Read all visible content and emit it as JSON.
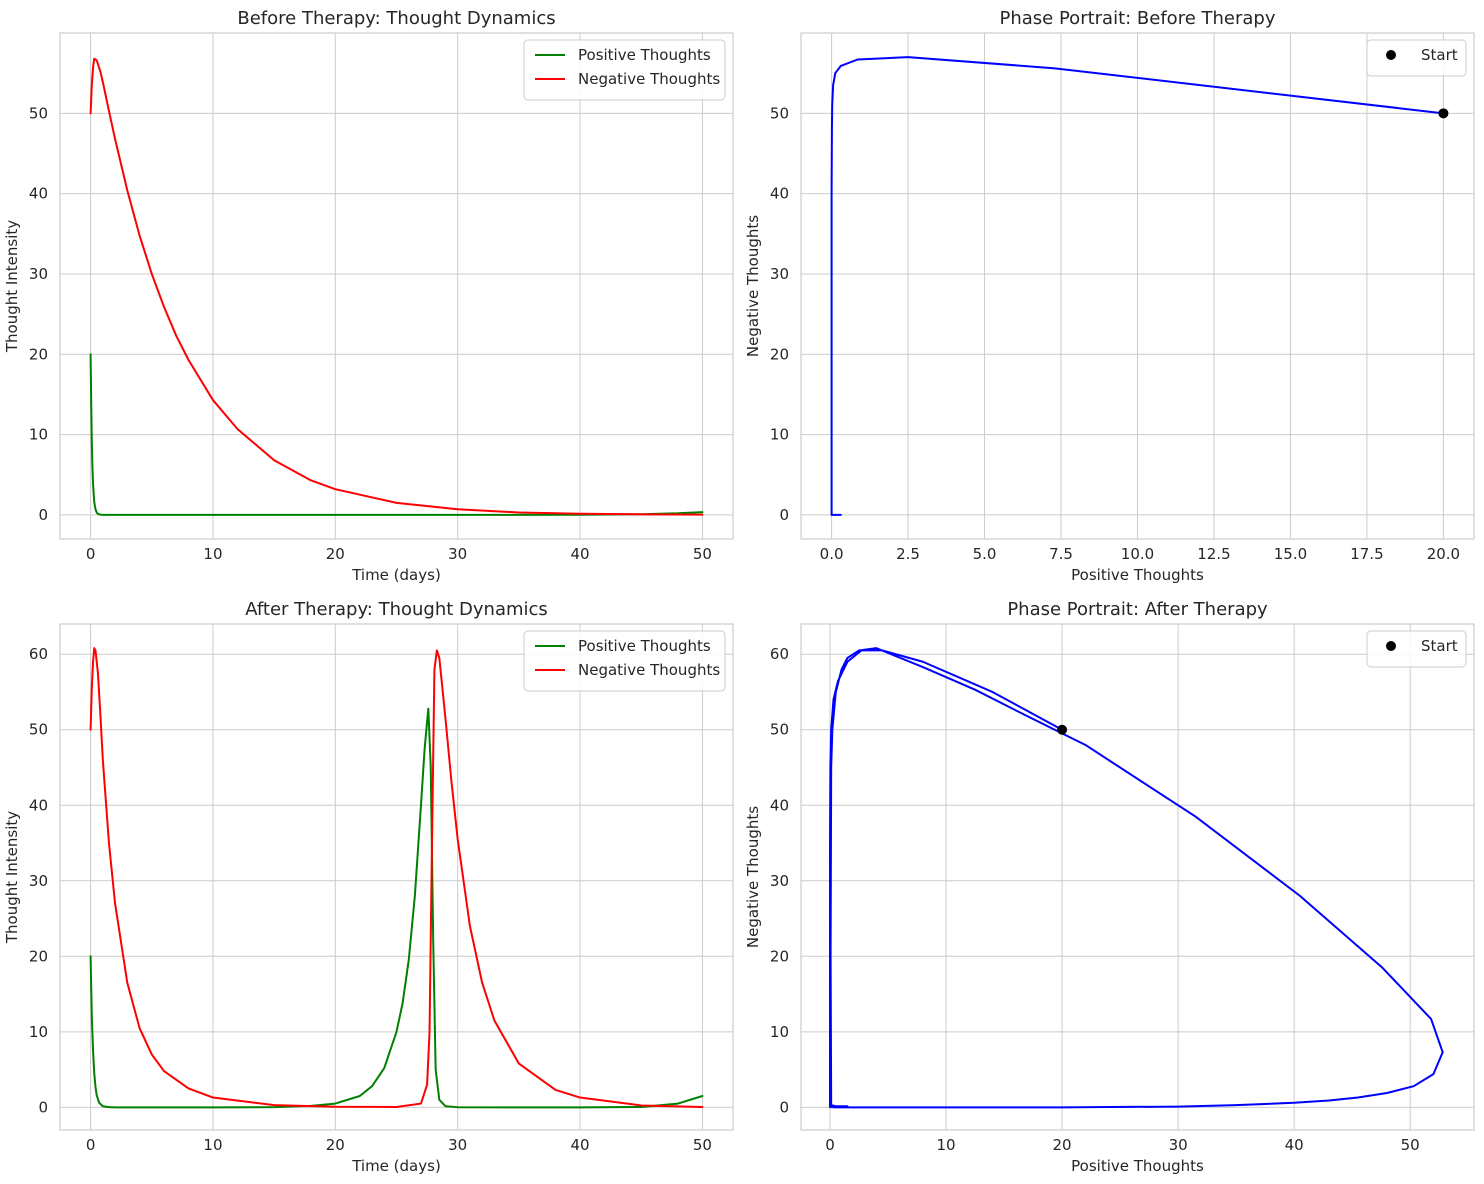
{
  "chart_data": [
    {
      "type": "line",
      "title": "Before Therapy: Thought Dynamics",
      "xlabel": "Time (days)",
      "ylabel": "Thought Intensity",
      "xlim": [
        -2.5,
        52.5
      ],
      "ylim": [
        -3,
        60
      ],
      "xticks": [
        0,
        10,
        20,
        30,
        40,
        50
      ],
      "yticks": [
        0,
        10,
        20,
        30,
        40,
        50
      ],
      "grid": true,
      "legend": "top-right",
      "series": [
        {
          "name": "Positive Thoughts",
          "color": "#008000",
          "x": [
            0,
            0.05,
            0.1,
            0.15,
            0.2,
            0.3,
            0.4,
            0.5,
            0.6,
            0.8,
            1,
            2,
            5,
            10,
            20,
            30,
            40,
            45,
            48,
            50
          ],
          "y": [
            20,
            14,
            9,
            6,
            3.8,
            1.6,
            0.7,
            0.3,
            0.12,
            0.03,
            0.01,
            0,
            0,
            0,
            0,
            0,
            0.02,
            0.08,
            0.2,
            0.35
          ]
        },
        {
          "name": "Negative Thoughts",
          "color": "#ff0000",
          "x": [
            0,
            0.1,
            0.2,
            0.3,
            0.5,
            0.8,
            1,
            1.5,
            2,
            3,
            4,
            5,
            6,
            7,
            8,
            10,
            12,
            15,
            18,
            20,
            25,
            30,
            35,
            40,
            45,
            50
          ],
          "y": [
            50,
            53.5,
            55.7,
            56.8,
            56.6,
            55.2,
            53.9,
            50.3,
            46.8,
            40.4,
            34.8,
            30,
            25.9,
            22.3,
            19.3,
            14.3,
            10.7,
            6.8,
            4.3,
            3.2,
            1.5,
            0.7,
            0.3,
            0.15,
            0.07,
            0.03
          ]
        }
      ]
    },
    {
      "type": "line",
      "title": "Phase Portrait: Before Therapy",
      "xlabel": "Positive Thoughts",
      "ylabel": "Negative Thoughts",
      "xlim": [
        -1,
        21
      ],
      "ylim": [
        -3,
        60
      ],
      "xticks": [
        0.0,
        2.5,
        5.0,
        7.5,
        10.0,
        12.5,
        15.0,
        17.5,
        20.0
      ],
      "xtick_labels": [
        "0.0",
        "2.5",
        "5.0",
        "7.5",
        "10.0",
        "12.5",
        "15.0",
        "17.5",
        "20.0"
      ],
      "yticks": [
        0,
        10,
        20,
        30,
        40,
        50
      ],
      "grid": true,
      "legend": "top-right",
      "series": [
        {
          "color": "#0000ff",
          "x": [
            20,
            7.3,
            2.5,
            0.85,
            0.3,
            0.12,
            0.05,
            0.02,
            0.01,
            0,
            0,
            0,
            0,
            0.05,
            0.15,
            0.3
          ],
          "y": [
            50,
            55.6,
            57,
            56.7,
            55.9,
            55,
            53.5,
            51,
            48,
            40,
            20,
            5,
            0,
            0,
            0,
            0
          ]
        },
        {
          "name": "Start",
          "type": "marker",
          "color": "#000000",
          "x": [
            20
          ],
          "y": [
            50
          ]
        }
      ]
    },
    {
      "type": "line",
      "title": "After Therapy: Thought Dynamics",
      "xlabel": "Time (days)",
      "ylabel": "Thought Intensity",
      "xlim": [
        -2.5,
        52.5
      ],
      "ylim": [
        -3,
        64
      ],
      "xticks": [
        0,
        10,
        20,
        30,
        40,
        50
      ],
      "yticks": [
        0,
        10,
        20,
        30,
        40,
        50,
        60
      ],
      "grid": true,
      "legend": "top-right",
      "series": [
        {
          "name": "Positive Thoughts",
          "color": "#008000",
          "x": [
            0,
            0.1,
            0.2,
            0.3,
            0.4,
            0.5,
            0.7,
            1,
            1.5,
            2,
            5,
            10,
            15,
            18,
            20,
            22,
            23,
            24,
            25,
            25.5,
            26,
            26.5,
            27,
            27.3,
            27.6,
            27.8,
            28,
            28.2,
            28.5,
            29,
            30,
            35,
            40,
            45,
            48,
            50
          ],
          "y": [
            20,
            12,
            7.5,
            4.5,
            2.7,
            1.6,
            0.6,
            0.15,
            0.03,
            0,
            0,
            0,
            0.03,
            0.2,
            0.5,
            1.5,
            2.8,
            5.2,
            10,
            13.8,
            19.5,
            28,
            40,
            47.5,
            52.8,
            45,
            22,
            5,
            1,
            0.15,
            0.02,
            0,
            0,
            0.05,
            0.5,
            1.5
          ]
        },
        {
          "name": "Negative Thoughts",
          "color": "#ff0000",
          "x": [
            0,
            0.1,
            0.2,
            0.3,
            0.4,
            0.6,
            0.8,
            1,
            1.5,
            2,
            3,
            4,
            5,
            6,
            8,
            10,
            15,
            20,
            25,
            27,
            27.5,
            27.7,
            27.9,
            28.1,
            28.3,
            28.5,
            29,
            29.5,
            30,
            31,
            32,
            33,
            35,
            38,
            40,
            45,
            50
          ],
          "y": [
            50,
            55.5,
            59,
            60.8,
            60.5,
            57.5,
            52,
            46,
            35,
            27,
            16.5,
            10.5,
            7,
            4.8,
            2.5,
            1.3,
            0.3,
            0.07,
            0.05,
            0.5,
            3,
            10,
            35,
            58,
            60.5,
            59.5,
            51.5,
            43,
            35.5,
            24,
            16.5,
            11.5,
            5.8,
            2.3,
            1.3,
            0.25,
            0.05
          ]
        }
      ]
    },
    {
      "type": "line",
      "title": "Phase Portrait: After Therapy",
      "xlabel": "Positive Thoughts",
      "ylabel": "Negative Thoughts",
      "xlim": [
        -2.5,
        55.5
      ],
      "ylim": [
        -3,
        64
      ],
      "xticks": [
        0,
        10,
        20,
        30,
        40,
        50
      ],
      "yticks": [
        0,
        10,
        20,
        30,
        40,
        50,
        60
      ],
      "grid": true,
      "legend": "top-right",
      "series": [
        {
          "color": "#0000ff",
          "x": [
            20,
            14,
            8,
            4.5,
            2.7,
            1.5,
            0.7,
            0.3,
            0.1,
            0.03,
            0,
            0,
            0,
            0,
            0,
            0.5,
            1.5,
            5,
            10,
            20,
            30,
            35,
            40,
            43,
            45.5,
            48,
            50.3,
            52,
            52.8,
            51.8,
            47.6,
            40.5,
            31.5,
            22,
            17,
            12.5,
            8,
            4,
            2.5,
            1.5,
            1,
            0.5,
            0.2,
            0.1,
            0.05,
            0.1,
            0.5,
            1.5
          ],
          "y": [
            50,
            55,
            59,
            60.5,
            60.5,
            59,
            56.5,
            54,
            50,
            45,
            35,
            20,
            5,
            0.5,
            0.05,
            0,
            0,
            0,
            0,
            0,
            0.1,
            0.3,
            0.6,
            0.9,
            1.3,
            1.9,
            2.8,
            4.4,
            7.3,
            11.7,
            18.5,
            28,
            38.5,
            48,
            51.8,
            55.3,
            58.3,
            60.8,
            60.5,
            59.5,
            58,
            55,
            50,
            45,
            20,
            0.3,
            0.15,
            0.15
          ]
        },
        {
          "name": "Start",
          "type": "marker",
          "color": "#000000",
          "x": [
            20
          ],
          "y": [
            50
          ]
        }
      ]
    }
  ]
}
